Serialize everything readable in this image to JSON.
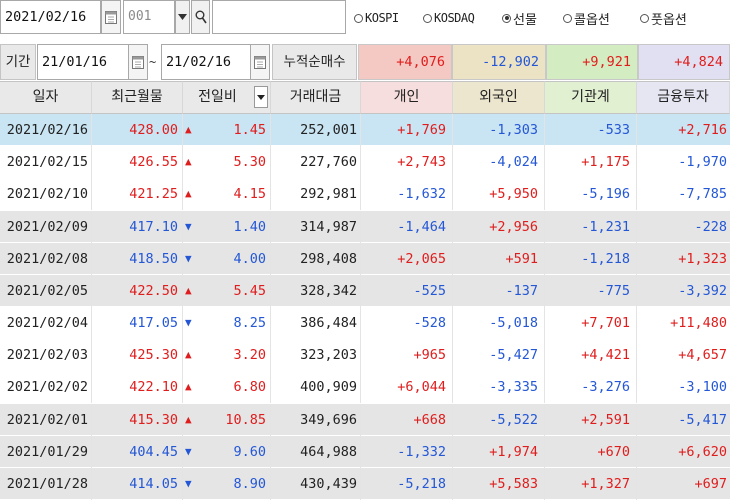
{
  "search": {
    "date_value": "2021/02/16",
    "code_placeholder": "001",
    "name_value": "",
    "radios": [
      {
        "label": "KOSPI",
        "selected": false
      },
      {
        "label": "KOSDAQ",
        "selected": false
      },
      {
        "label": "선물",
        "selected": true
      },
      {
        "label": "콜옵션",
        "selected": false
      },
      {
        "label": "풋옵션",
        "selected": false
      }
    ]
  },
  "period": {
    "label": "기간",
    "start_date": "21/01/16",
    "tilde": "~",
    "end_date": "21/02/16",
    "cumulative_label": "누적순매수",
    "cumulative_values": [
      "+4,076",
      "-12,902",
      "+9,921",
      "+4,824"
    ]
  },
  "colors": {
    "up": "#e01d1d",
    "down": "#2457d6",
    "header_gray": "#e9e9e9",
    "header_pink": "#f6dede",
    "header_tan": "#ece6cf",
    "header_green": "#e2f0d2",
    "header_lavender": "#e6e6f2",
    "sum_pink": "#f5c9c3",
    "sum_tan": "#ece2c4",
    "sum_green": "#d4ecc2",
    "sum_lavender": "#e0e0f2",
    "row_selected": "#c9e4f2",
    "row_gray": "#e5e5e5"
  },
  "table": {
    "headers": [
      "일자",
      "최근월물",
      "전일비",
      "거래대금",
      "개인",
      "외국인",
      "기관계",
      "금융투자"
    ],
    "sort_icon": "chevron-down-icon",
    "rows": [
      {
        "date": "2021/02/16",
        "price": "428.00",
        "dir": "up",
        "change": "1.45",
        "amount": "252,001",
        "indiv": "+1,769",
        "foreign": "-1,303",
        "inst": "-533",
        "fin": "+2,716",
        "bg": "selected"
      },
      {
        "date": "2021/02/15",
        "price": "426.55",
        "dir": "up",
        "change": "5.30",
        "amount": "227,760",
        "indiv": "+2,743",
        "foreign": "-4,024",
        "inst": "+1,175",
        "fin": "-1,970",
        "bg": "white"
      },
      {
        "date": "2021/02/10",
        "price": "421.25",
        "dir": "up",
        "change": "4.15",
        "amount": "292,981",
        "indiv": "-1,632",
        "foreign": "+5,950",
        "inst": "-5,196",
        "fin": "-7,785",
        "bg": "white"
      },
      {
        "date": "2021/02/09",
        "price": "417.10",
        "dir": "down",
        "change": "1.40",
        "amount": "314,987",
        "indiv": "-1,464",
        "foreign": "+2,956",
        "inst": "-1,231",
        "fin": "-228",
        "bg": "gray"
      },
      {
        "date": "2021/02/08",
        "price": "418.50",
        "dir": "down",
        "change": "4.00",
        "amount": "298,408",
        "indiv": "+2,065",
        "foreign": "+591",
        "inst": "-1,218",
        "fin": "+1,323",
        "bg": "gray"
      },
      {
        "date": "2021/02/05",
        "price": "422.50",
        "dir": "up",
        "change": "5.45",
        "amount": "328,342",
        "indiv": "-525",
        "foreign": "-137",
        "inst": "-775",
        "fin": "-3,392",
        "bg": "gray"
      },
      {
        "date": "2021/02/04",
        "price": "417.05",
        "dir": "down",
        "change": "8.25",
        "amount": "386,484",
        "indiv": "-528",
        "foreign": "-5,018",
        "inst": "+7,701",
        "fin": "+11,480",
        "bg": "white"
      },
      {
        "date": "2021/02/03",
        "price": "425.30",
        "dir": "up",
        "change": "3.20",
        "amount": "323,203",
        "indiv": "+965",
        "foreign": "-5,427",
        "inst": "+4,421",
        "fin": "+4,657",
        "bg": "white"
      },
      {
        "date": "2021/02/02",
        "price": "422.10",
        "dir": "up",
        "change": "6.80",
        "amount": "400,909",
        "indiv": "+6,044",
        "foreign": "-3,335",
        "inst": "-3,276",
        "fin": "-3,100",
        "bg": "white"
      },
      {
        "date": "2021/02/01",
        "price": "415.30",
        "dir": "up",
        "change": "10.85",
        "amount": "349,696",
        "indiv": "+668",
        "foreign": "-5,522",
        "inst": "+2,591",
        "fin": "-5,417",
        "bg": "gray"
      },
      {
        "date": "2021/01/29",
        "price": "404.45",
        "dir": "down",
        "change": "9.60",
        "amount": "464,988",
        "indiv": "-1,332",
        "foreign": "+1,974",
        "inst": "+670",
        "fin": "+6,620",
        "bg": "gray"
      },
      {
        "date": "2021/01/28",
        "price": "414.05",
        "dir": "down",
        "change": "8.90",
        "amount": "430,439",
        "indiv": "-5,218",
        "foreign": "+5,583",
        "inst": "+1,327",
        "fin": "+697",
        "bg": "gray"
      }
    ]
  }
}
